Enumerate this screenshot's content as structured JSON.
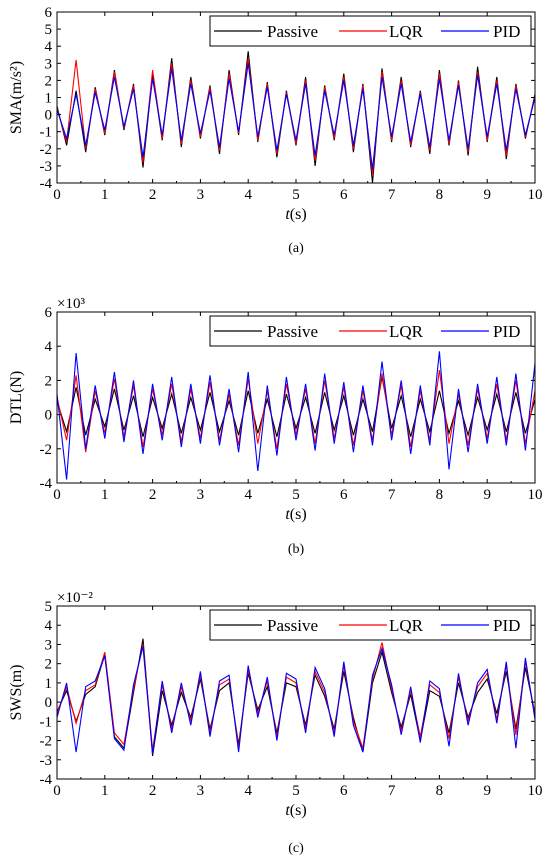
{
  "figure_colors": {
    "Passive": "#000000",
    "LQR": "#ff0000",
    "PID": "#0000ff"
  },
  "chart_data": [
    {
      "type": "line",
      "caption": "(a)",
      "ylabel": "SMA(m/s²)",
      "xlabel_italic": "t",
      "xlabel_unit": "(s)",
      "exponent": "",
      "xlim": [
        0,
        10
      ],
      "ylim": [
        -4,
        6
      ],
      "xticks": [
        "0",
        "1",
        "2",
        "3",
        "4",
        "5",
        "6",
        "7",
        "8",
        "9",
        "10"
      ],
      "yticks": [
        "-4",
        "-3",
        "-2",
        "-1",
        "0",
        "1",
        "2",
        "3",
        "4",
        "5",
        "6"
      ],
      "legend": [
        "Passive",
        "LQR",
        "PID"
      ],
      "legend_position": "top",
      "series": [
        {
          "name": "Passive",
          "x": [
            0,
            0.2,
            0.4,
            0.6,
            0.8,
            1,
            1.2,
            1.4,
            1.6,
            1.8,
            2,
            2.2,
            2.4,
            2.6,
            2.8,
            3,
            3.2,
            3.4,
            3.6,
            3.8,
            4,
            4.2,
            4.4,
            4.6,
            4.8,
            5,
            5.2,
            5.4,
            5.6,
            5.8,
            6,
            6.2,
            6.4,
            6.6,
            6.8,
            7,
            7.2,
            7.4,
            7.6,
            7.8,
            8,
            8.2,
            8.4,
            8.6,
            8.8,
            9,
            9.2,
            9.4,
            9.6,
            9.8,
            10
          ],
          "y": [
            0.5,
            -1.8,
            1.4,
            -2.2,
            1.6,
            -1.2,
            2.6,
            -0.9,
            1.8,
            -3.1,
            2.4,
            -1.5,
            3.3,
            -1.9,
            2.2,
            -1.4,
            1.7,
            -2.3,
            2.6,
            -1.2,
            3.7,
            -1.6,
            1.9,
            -2.5,
            1.4,
            -1.8,
            2.2,
            -3.0,
            1.7,
            -1.5,
            2.4,
            -2.2,
            1.8,
            -4.0,
            2.7,
            -1.6,
            2.2,
            -1.9,
            1.4,
            -2.3,
            2.6,
            -1.8,
            2.0,
            -2.4,
            2.8,
            -1.6,
            2.2,
            -2.6,
            1.8,
            -1.4,
            1.2
          ]
        },
        {
          "name": "LQR",
          "x": [
            0,
            0.2,
            0.4,
            0.6,
            0.8,
            1,
            1.2,
            1.4,
            1.6,
            1.8,
            2,
            2.2,
            2.4,
            2.6,
            2.8,
            3,
            3.2,
            3.4,
            3.6,
            3.8,
            4,
            4.2,
            4.4,
            4.6,
            4.8,
            5,
            5.2,
            5.4,
            5.6,
            5.8,
            6,
            6.2,
            6.4,
            6.6,
            6.8,
            7,
            7.2,
            7.4,
            7.6,
            7.8,
            8,
            8.2,
            8.4,
            8.6,
            8.8,
            9,
            9.2,
            9.4,
            9.6,
            9.8,
            10
          ],
          "y": [
            0.4,
            -1.6,
            3.2,
            -2.0,
            1.5,
            -1.1,
            2.5,
            -0.8,
            1.7,
            -2.8,
            2.6,
            -1.4,
            3.0,
            -1.7,
            2.0,
            -1.3,
            1.6,
            -2.1,
            2.4,
            -1.1,
            3.3,
            -1.5,
            1.8,
            -2.3,
            1.3,
            -1.7,
            2.0,
            -2.7,
            1.6,
            -1.4,
            2.2,
            -2.0,
            1.7,
            -3.5,
            2.5,
            -1.5,
            2.0,
            -1.8,
            1.3,
            -2.1,
            2.4,
            -1.7,
            1.9,
            -2.2,
            2.5,
            -1.5,
            2.0,
            -2.4,
            1.7,
            -1.3,
            1.1
          ]
        },
        {
          "name": "PID",
          "x": [
            0,
            0.2,
            0.4,
            0.6,
            0.8,
            1,
            1.2,
            1.4,
            1.6,
            1.8,
            2,
            2.2,
            2.4,
            2.6,
            2.8,
            3,
            3.2,
            3.4,
            3.6,
            3.8,
            4,
            4.2,
            4.4,
            4.6,
            4.8,
            5,
            5.2,
            5.4,
            5.6,
            5.8,
            6,
            6.2,
            6.4,
            6.6,
            6.8,
            7,
            7.2,
            7.4,
            7.6,
            7.8,
            8,
            8.2,
            8.4,
            8.6,
            8.8,
            9,
            9.2,
            9.4,
            9.6,
            9.8,
            10
          ],
          "y": [
            0.3,
            -1.4,
            1.2,
            -1.8,
            1.3,
            -0.9,
            2.2,
            -0.7,
            1.5,
            -2.5,
            2.1,
            -1.2,
            2.7,
            -1.5,
            1.8,
            -1.1,
            1.4,
            -1.9,
            2.1,
            -1.0,
            3.0,
            -1.3,
            1.6,
            -2.1,
            1.2,
            -1.5,
            1.8,
            -2.4,
            1.4,
            -1.2,
            2.0,
            -1.8,
            1.5,
            -3.2,
            2.2,
            -1.3,
            1.8,
            -1.6,
            1.2,
            -1.9,
            2.1,
            -1.5,
            1.7,
            -2.0,
            2.3,
            -1.3,
            1.8,
            -2.1,
            1.5,
            -1.2,
            1.0
          ]
        }
      ]
    },
    {
      "type": "line",
      "caption": "(b)",
      "ylabel": "DTL(N)",
      "xlabel_italic": "t",
      "xlabel_unit": "(s)",
      "exponent": "×10³",
      "xlim": [
        0,
        10
      ],
      "ylim": [
        -4,
        6
      ],
      "xticks": [
        "0",
        "1",
        "2",
        "3",
        "4",
        "5",
        "6",
        "7",
        "8",
        "9",
        "10"
      ],
      "yticks": [
        "-4",
        "-2",
        "0",
        "2",
        "4",
        "6"
      ],
      "legend": [
        "Passive",
        "LQR",
        "PID"
      ],
      "legend_position": "top",
      "series": [
        {
          "name": "Passive",
          "x": [
            0,
            0.2,
            0.4,
            0.6,
            0.8,
            1,
            1.2,
            1.4,
            1.6,
            1.8,
            2,
            2.2,
            2.4,
            2.6,
            2.8,
            3,
            3.2,
            3.4,
            3.6,
            3.8,
            4,
            4.2,
            4.4,
            4.6,
            4.8,
            5,
            5.2,
            5.4,
            5.6,
            5.8,
            6,
            6.2,
            6.4,
            6.6,
            6.8,
            7,
            7.2,
            7.4,
            7.6,
            7.8,
            8,
            8.2,
            8.4,
            8.6,
            8.8,
            9,
            9.2,
            9.4,
            9.6,
            9.8,
            10
          ],
          "y": [
            0.8,
            -1.0,
            1.6,
            -1.2,
            0.9,
            -0.7,
            1.5,
            -0.9,
            1.1,
            -1.3,
            1.0,
            -0.8,
            1.2,
            -1.1,
            1.0,
            -0.9,
            1.3,
            -1.0,
            0.8,
            -1.2,
            1.4,
            -1.1,
            0.9,
            -1.3,
            1.2,
            -0.8,
            1.0,
            -1.1,
            1.3,
            -0.9,
            1.1,
            -1.2,
            0.9,
            -1.0,
            2.2,
            -0.8,
            1.1,
            -1.3,
            0.9,
            -1.0,
            1.4,
            -1.1,
            0.8,
            -1.2,
            1.0,
            -0.9,
            1.2,
            -1.0,
            1.3,
            -1.1,
            0.9
          ]
        },
        {
          "name": "LQR",
          "x": [
            0,
            0.2,
            0.4,
            0.6,
            0.8,
            1,
            1.2,
            1.4,
            1.6,
            1.8,
            2,
            2.2,
            2.4,
            2.6,
            2.8,
            3,
            3.2,
            3.4,
            3.6,
            3.8,
            4,
            4.2,
            4.4,
            4.6,
            4.8,
            5,
            5.2,
            5.4,
            5.6,
            5.8,
            6,
            6.2,
            6.4,
            6.6,
            6.8,
            7,
            7.2,
            7.4,
            7.6,
            7.8,
            8,
            8.2,
            8.4,
            8.6,
            8.8,
            9,
            9.2,
            9.4,
            9.6,
            9.8,
            10
          ],
          "y": [
            1.0,
            -1.5,
            2.3,
            -2.2,
            1.4,
            -1.1,
            2.1,
            -1.3,
            1.7,
            -1.9,
            1.5,
            -1.2,
            1.8,
            -1.6,
            1.5,
            -1.4,
            1.9,
            -1.5,
            1.2,
            -1.8,
            2.1,
            -1.7,
            1.4,
            -2.0,
            1.8,
            -1.2,
            1.5,
            -1.7,
            2.0,
            -1.4,
            1.6,
            -1.8,
            1.4,
            -1.5,
            2.4,
            -1.2,
            1.7,
            -1.9,
            1.4,
            -1.5,
            2.6,
            -1.7,
            1.2,
            -1.8,
            1.5,
            -1.4,
            1.8,
            -1.5,
            2.0,
            -1.7,
            1.4
          ]
        },
        {
          "name": "PID",
          "x": [
            0,
            0.2,
            0.4,
            0.6,
            0.8,
            1,
            1.2,
            1.4,
            1.6,
            1.8,
            2,
            2.2,
            2.4,
            2.6,
            2.8,
            3,
            3.2,
            3.4,
            3.6,
            3.8,
            4,
            4.2,
            4.4,
            4.6,
            4.8,
            5,
            5.2,
            5.4,
            5.6,
            5.8,
            6,
            6.2,
            6.4,
            6.6,
            6.8,
            7,
            7.2,
            7.4,
            7.6,
            7.8,
            8,
            8.2,
            8.4,
            8.6,
            8.8,
            9,
            9.2,
            9.4,
            9.6,
            9.8,
            10
          ],
          "y": [
            1.2,
            -3.8,
            3.6,
            -2.0,
            1.7,
            -1.4,
            2.5,
            -1.6,
            2.0,
            -2.3,
            1.8,
            -1.5,
            2.2,
            -1.9,
            1.8,
            -1.7,
            2.3,
            -1.8,
            1.5,
            -2.2,
            2.5,
            -3.3,
            1.7,
            -2.4,
            2.2,
            -1.5,
            1.8,
            -2.1,
            2.4,
            -1.7,
            1.9,
            -2.2,
            1.7,
            -1.8,
            3.1,
            -1.5,
            2.0,
            -2.3,
            1.7,
            -1.8,
            3.7,
            -3.2,
            1.5,
            -2.2,
            1.8,
            -1.7,
            2.2,
            -1.8,
            2.4,
            -2.1,
            3.0
          ]
        }
      ]
    },
    {
      "type": "line",
      "caption": "(c)",
      "ylabel": "SWS(m)",
      "xlabel_italic": "t",
      "xlabel_unit": "(s)",
      "exponent": "×10⁻²",
      "xlim": [
        0,
        10
      ],
      "ylim": [
        -4,
        5
      ],
      "xticks": [
        "0",
        "1",
        "2",
        "3",
        "4",
        "5",
        "6",
        "7",
        "8",
        "9",
        "10"
      ],
      "yticks": [
        "-4",
        "-3",
        "-2",
        "-1",
        "0",
        "1",
        "2",
        "3",
        "4",
        "5"
      ],
      "legend": [
        "Passive",
        "LQR",
        "PID"
      ],
      "legend_position": "top",
      "series": [
        {
          "name": "Passive",
          "x": [
            0,
            0.2,
            0.4,
            0.6,
            0.8,
            1,
            1.2,
            1.4,
            1.6,
            1.8,
            2,
            2.2,
            2.4,
            2.6,
            2.8,
            3,
            3.2,
            3.4,
            3.6,
            3.8,
            4,
            4.2,
            4.4,
            4.6,
            4.8,
            5,
            5.2,
            5.4,
            5.6,
            5.8,
            6,
            6.2,
            6.4,
            6.6,
            6.8,
            7,
            7.2,
            7.4,
            7.6,
            7.8,
            8,
            8.2,
            8.4,
            8.6,
            8.8,
            9,
            9.2,
            9.4,
            9.6,
            9.8,
            10
          ],
          "y": [
            -0.5,
            0.6,
            -1.0,
            0.4,
            0.8,
            2.5,
            -1.8,
            -2.4,
            0.5,
            3.3,
            -2.8,
            0.6,
            -1.2,
            0.5,
            -0.8,
            1.2,
            -1.4,
            0.6,
            1.0,
            -2.2,
            1.5,
            -0.4,
            0.8,
            -1.6,
            1.0,
            0.8,
            -1.2,
            1.4,
            0.3,
            -1.4,
            1.6,
            -0.8,
            -2.6,
            1.0,
            2.6,
            0.5,
            -1.3,
            0.4,
            -2.0,
            0.6,
            0.3,
            -1.6,
            1.0,
            -0.8,
            0.5,
            1.2,
            -0.6,
            1.6,
            -1.4,
            1.8,
            -0.6
          ]
        },
        {
          "name": "LQR",
          "x": [
            0,
            0.2,
            0.4,
            0.6,
            0.8,
            1,
            1.2,
            1.4,
            1.6,
            1.8,
            2,
            2.2,
            2.4,
            2.6,
            2.8,
            3,
            3.2,
            3.4,
            3.6,
            3.8,
            4,
            4.2,
            4.4,
            4.6,
            4.8,
            5,
            5.2,
            5.4,
            5.6,
            5.8,
            6,
            6.2,
            6.4,
            6.6,
            6.8,
            7,
            7.2,
            7.4,
            7.6,
            7.8,
            8,
            8.2,
            8.4,
            8.6,
            8.8,
            9,
            9.2,
            9.4,
            9.6,
            9.8,
            10
          ],
          "y": [
            -0.6,
            0.8,
            -1.1,
            0.6,
            0.9,
            2.6,
            -1.6,
            -2.2,
            0.7,
            3.0,
            -2.5,
            0.9,
            -1.4,
            0.8,
            -1.0,
            1.4,
            -1.6,
            0.9,
            1.2,
            -2.4,
            1.7,
            -0.6,
            1.1,
            -1.8,
            1.3,
            1.0,
            -1.4,
            1.6,
            0.5,
            -1.6,
            1.9,
            -1.0,
            -2.4,
            1.2,
            3.1,
            0.7,
            -1.5,
            0.6,
            -1.8,
            0.9,
            0.5,
            -1.9,
            1.3,
            -1.0,
            0.8,
            1.5,
            -0.9,
            1.9,
            -1.7,
            2.1,
            -0.7
          ]
        },
        {
          "name": "PID",
          "x": [
            0,
            0.2,
            0.4,
            0.6,
            0.8,
            1,
            1.2,
            1.4,
            1.6,
            1.8,
            2,
            2.2,
            2.4,
            2.6,
            2.8,
            3,
            3.2,
            3.4,
            3.6,
            3.8,
            4,
            4.2,
            4.4,
            4.6,
            4.8,
            5,
            5.2,
            5.4,
            5.6,
            5.8,
            6,
            6.2,
            6.4,
            6.6,
            6.8,
            7,
            7.2,
            7.4,
            7.6,
            7.8,
            8,
            8.2,
            8.4,
            8.6,
            8.8,
            9,
            9.2,
            9.4,
            9.6,
            9.8,
            10
          ],
          "y": [
            -0.8,
            1.0,
            -2.6,
            0.8,
            1.1,
            2.4,
            -1.9,
            -2.5,
            0.9,
            2.9,
            -2.7,
            1.1,
            -1.6,
            1.0,
            -1.2,
            1.6,
            -1.8,
            1.1,
            1.4,
            -2.6,
            1.9,
            -0.8,
            1.3,
            -2.0,
            1.5,
            1.2,
            -1.6,
            1.8,
            0.7,
            -1.8,
            2.1,
            -1.2,
            -2.6,
            1.4,
            2.8,
            0.9,
            -1.7,
            0.8,
            -2.1,
            1.1,
            0.7,
            -2.3,
            1.5,
            -1.2,
            1.0,
            1.7,
            -1.1,
            2.1,
            -2.4,
            2.3,
            -0.9
          ]
        }
      ]
    }
  ]
}
